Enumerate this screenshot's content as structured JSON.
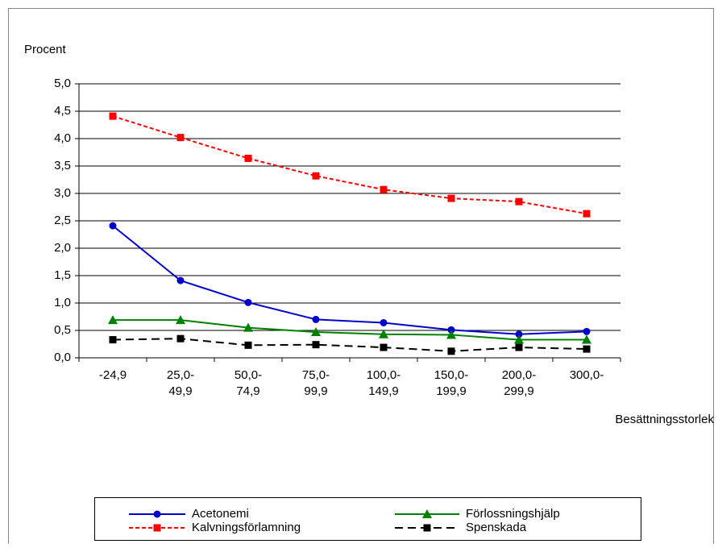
{
  "chart_data": {
    "type": "line",
    "y_label": "Procent",
    "x_label": "Besättningsstorlek",
    "categories": [
      "-24,9",
      "25,0-\n49,9",
      "50,0-\n74,9",
      "75,0-\n99,9",
      "100,0-\n149,9",
      "150,0-\n199,9",
      "200,0-\n299,9",
      "300,0-"
    ],
    "ylim": [
      0,
      5
    ],
    "yticks": [
      {
        "value": 0,
        "label": "0,0"
      },
      {
        "value": 0.5,
        "label": "0,5"
      },
      {
        "value": 1,
        "label": "1,0"
      },
      {
        "value": 1.5,
        "label": "1,5"
      },
      {
        "value": 2,
        "label": "2,0"
      },
      {
        "value": 2.5,
        "label": "2,5"
      },
      {
        "value": 3,
        "label": "3,0"
      },
      {
        "value": 3.5,
        "label": "3,5"
      },
      {
        "value": 4,
        "label": "4,0"
      },
      {
        "value": 4.5,
        "label": "4,5"
      },
      {
        "value": 5,
        "label": "5,0"
      }
    ],
    "grid": true,
    "legend": "bottom",
    "series": [
      {
        "name": "Acetonemi",
        "color": "#0000cc",
        "line_style": "solid",
        "marker": "circle",
        "values": [
          2.41,
          1.41,
          1.01,
          0.7,
          0.64,
          0.51,
          0.43,
          0.48
        ]
      },
      {
        "name": "Förlossningshjälp",
        "color": "#008000",
        "line_style": "solid",
        "marker": "triangle",
        "values": [
          0.69,
          0.69,
          0.55,
          0.47,
          0.43,
          0.42,
          0.33,
          0.33
        ]
      },
      {
        "name": "Kalvningsförlamning",
        "color": "#ff0000",
        "line_style": "dashed",
        "marker": "square",
        "values": [
          4.41,
          4.02,
          3.64,
          3.32,
          3.07,
          2.91,
          2.85,
          2.63
        ]
      },
      {
        "name": "Spenskada",
        "color": "#000000",
        "line_style": "long-dashed",
        "marker": "square",
        "values": [
          0.33,
          0.35,
          0.23,
          0.24,
          0.19,
          0.12,
          0.19,
          0.16
        ]
      }
    ]
  }
}
